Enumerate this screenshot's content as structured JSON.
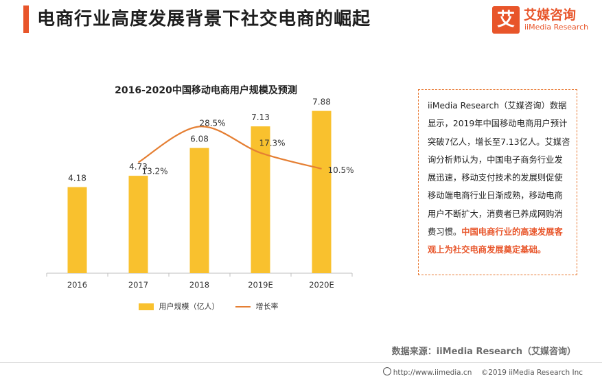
{
  "header": {
    "title": "电商行业高度发展背景下社交电商的崛起",
    "logo_icon": "艾",
    "logo_cn": "艾媒咨询",
    "logo_en": "iiMedia Research"
  },
  "chart_data": {
    "type": "bar",
    "title": "2016-2020中国移动电商用户规模及预测",
    "categories": [
      "2016",
      "2017",
      "2018",
      "2019E",
      "2020E"
    ],
    "series": [
      {
        "name": "用户规模（亿人）",
        "type": "bar",
        "values": [
          4.18,
          4.73,
          6.08,
          7.13,
          7.88
        ],
        "labels": [
          "4.18",
          "4.73",
          "6.08",
          "7.13",
          "7.88"
        ],
        "color": "#f9c12e"
      },
      {
        "name": "增长率",
        "type": "line",
        "values": [
          null,
          13.2,
          28.5,
          17.3,
          10.5
        ],
        "labels": [
          "",
          "13.2%",
          "28.5%",
          "17.3%",
          "10.5%"
        ],
        "color": "#e57f33"
      }
    ],
    "ylim": [
      0,
      9
    ],
    "y2lim": [
      -34,
      45
    ],
    "xlabel": "",
    "ylabel": "",
    "grid": false,
    "legend": "bottom"
  },
  "callout": {
    "text": "iiMedia Research（艾媒咨询）数据显示，2019年中国移动电商用户预计突破7亿人，增长至7.13亿人。艾媒咨询分析师认为，中国电子商务行业发展迅速，移动支付技术的发展则促使移动端电商行业日渐成熟，移动电商用户不断扩大，消费者已养成网购消费习惯。",
    "highlight": "中国电商行业的高速发展客观上为社交电商发展奠定基础。",
    "highlight_color": "#e8552a"
  },
  "source": "数据来源：iiMedia Research（艾媒咨询）",
  "footer": {
    "url": "http://www.iimedia.cn",
    "copyright": "©2019 iiMedia Research Inc"
  }
}
